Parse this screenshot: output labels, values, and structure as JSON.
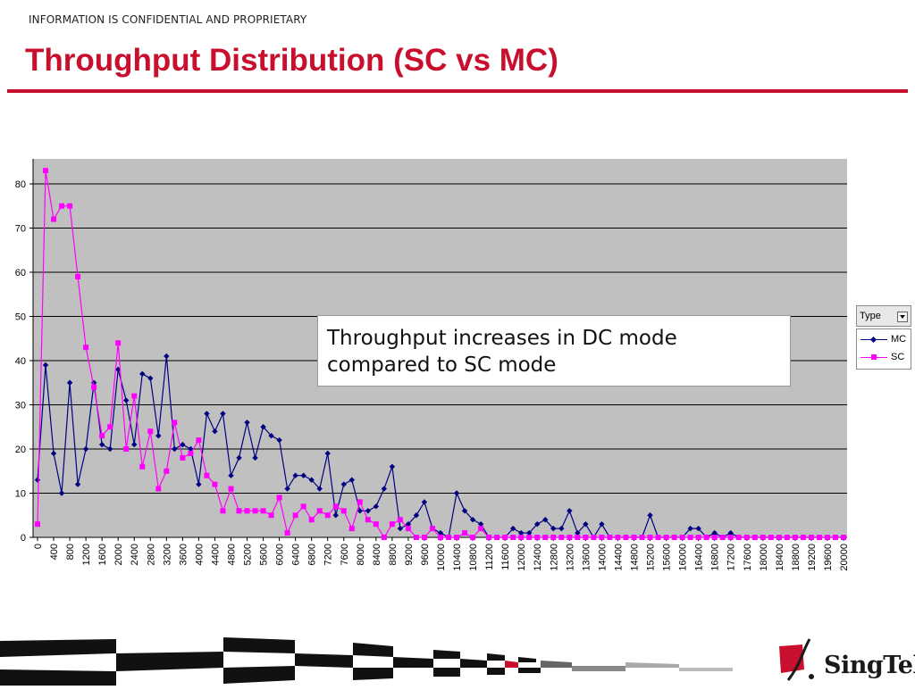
{
  "header": {
    "confidential": "INFORMATION IS CONFIDENTIAL AND PROPRIETARY",
    "title": "Throughput Distribution (SC vs MC)"
  },
  "callout": {
    "line1": "Throughput increases in DC mode",
    "line2": "compared to SC mode"
  },
  "logo": {
    "text": "SingTel"
  },
  "colors": {
    "accent": "#c8102e",
    "mc": "#000080",
    "sc": "#ff00ff",
    "plot_bg": "#c0c0c0"
  },
  "chart_data": {
    "type": "line",
    "title": "",
    "xlabel": "",
    "ylabel": "",
    "ylim": [
      0,
      85
    ],
    "yticks": [
      0,
      10,
      20,
      30,
      40,
      50,
      60,
      70,
      80
    ],
    "grid": "horizontal",
    "legend": {
      "title": "Type",
      "placement": "right"
    },
    "x": [
      0,
      200,
      400,
      600,
      800,
      1000,
      1200,
      1400,
      1600,
      1800,
      2000,
      2200,
      2400,
      2600,
      2800,
      3000,
      3200,
      3400,
      3600,
      3800,
      4000,
      4200,
      4400,
      4600,
      4800,
      5000,
      5200,
      5400,
      5600,
      5800,
      6000,
      6200,
      6400,
      6600,
      6800,
      7000,
      7200,
      7400,
      7600,
      7800,
      8000,
      8200,
      8400,
      8600,
      8800,
      9000,
      9200,
      9400,
      9600,
      9800,
      10000,
      10200,
      10400,
      10600,
      10800,
      11000,
      11200,
      11400,
      11600,
      11800,
      12000,
      12200,
      12400,
      12600,
      12800,
      13000,
      13200,
      13400,
      13600,
      13800,
      14000,
      14200,
      14400,
      14600,
      14800,
      15000,
      15200,
      15400,
      15600,
      15800,
      16000,
      16200,
      16400,
      16600,
      16800,
      17000,
      17200,
      17400,
      17600,
      17800,
      18000,
      18200,
      18400,
      18600,
      18800,
      19000,
      19200,
      19400,
      19600,
      19800,
      20000
    ],
    "xtick_labels": [
      "0",
      "400",
      "800",
      "1200",
      "1600",
      "2000",
      "2400",
      "2800",
      "3200",
      "3600",
      "4000",
      "4400",
      "4800",
      "5200",
      "5600",
      "6000",
      "6400",
      "6800",
      "7200",
      "7600",
      "8000",
      "8400",
      "8800",
      "9200",
      "9600",
      "10000",
      "10400",
      "10800",
      "11200",
      "11600",
      "12000",
      "12400",
      "12800",
      "13200",
      "13600",
      "14000",
      "14400",
      "14800",
      "15200",
      "15600",
      "16000",
      "16400",
      "16800",
      "17200",
      "17600",
      "18000",
      "18400",
      "18800",
      "19200",
      "19600",
      "20000"
    ],
    "series": [
      {
        "name": "MC",
        "color": "#000080",
        "marker": "diamond",
        "values": [
          13,
          39,
          19,
          10,
          35,
          12,
          20,
          35,
          21,
          20,
          38,
          31,
          21,
          37,
          36,
          23,
          41,
          20,
          21,
          20,
          12,
          28,
          24,
          28,
          14,
          18,
          26,
          18,
          25,
          23,
          22,
          11,
          14,
          14,
          13,
          11,
          19,
          5,
          12,
          13,
          6,
          6,
          7,
          11,
          16,
          2,
          3,
          5,
          8,
          2,
          1,
          0,
          10,
          6,
          4,
          3,
          0,
          0,
          0,
          2,
          1,
          1,
          3,
          4,
          2,
          2,
          6,
          1,
          3,
          0,
          3,
          0,
          0,
          0,
          0,
          0,
          5,
          0,
          0,
          0,
          0,
          2,
          2,
          0,
          1,
          0,
          1,
          0,
          0,
          0,
          0,
          0,
          0,
          0,
          0,
          0,
          0,
          0,
          0,
          0,
          0
        ]
      },
      {
        "name": "SC",
        "color": "#ff00ff",
        "marker": "square",
        "values": [
          3,
          83,
          72,
          75,
          75,
          59,
          43,
          34,
          23,
          25,
          44,
          20,
          32,
          16,
          24,
          11,
          15,
          26,
          18,
          19,
          22,
          14,
          12,
          6,
          11,
          6,
          6,
          6,
          6,
          5,
          9,
          1,
          5,
          7,
          4,
          6,
          5,
          7,
          6,
          2,
          8,
          4,
          3,
          0,
          3,
          4,
          2,
          0,
          0,
          2,
          0,
          0,
          0,
          1,
          0,
          2,
          0,
          0,
          0,
          0,
          0,
          0,
          0,
          0,
          0,
          0,
          0,
          0,
          0,
          0,
          0,
          0,
          0,
          0,
          0,
          0,
          0,
          0,
          0,
          0,
          0,
          0,
          0,
          0,
          0,
          0,
          0,
          0,
          0,
          0,
          0,
          0,
          0,
          0,
          0,
          0,
          0,
          0,
          0,
          0,
          0
        ]
      }
    ]
  }
}
